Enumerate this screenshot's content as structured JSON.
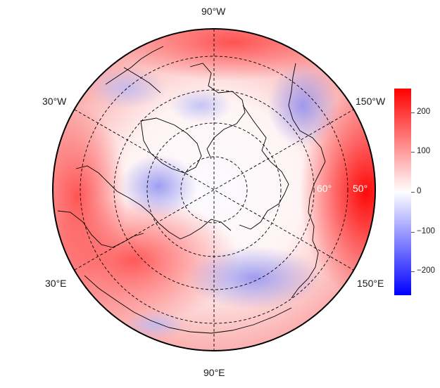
{
  "lon_labels": {
    "top": "90°W",
    "bottom": "90°E",
    "upper_left": "30°W",
    "upper_right": "150°W",
    "lower_left": "30°E",
    "lower_right": "150°E"
  },
  "lat_labels": {
    "inner": "60°",
    "outer": "50°"
  },
  "colorbar": {
    "ticks": [
      "200",
      "100",
      "0",
      "−100",
      "−200"
    ],
    "tick_values": [
      200,
      100,
      0,
      -100,
      -200
    ],
    "range": [
      -260,
      260
    ],
    "colors": {
      "high": "#ff0000",
      "mid": "#ffffff",
      "low": "#0000ff"
    }
  }
}
